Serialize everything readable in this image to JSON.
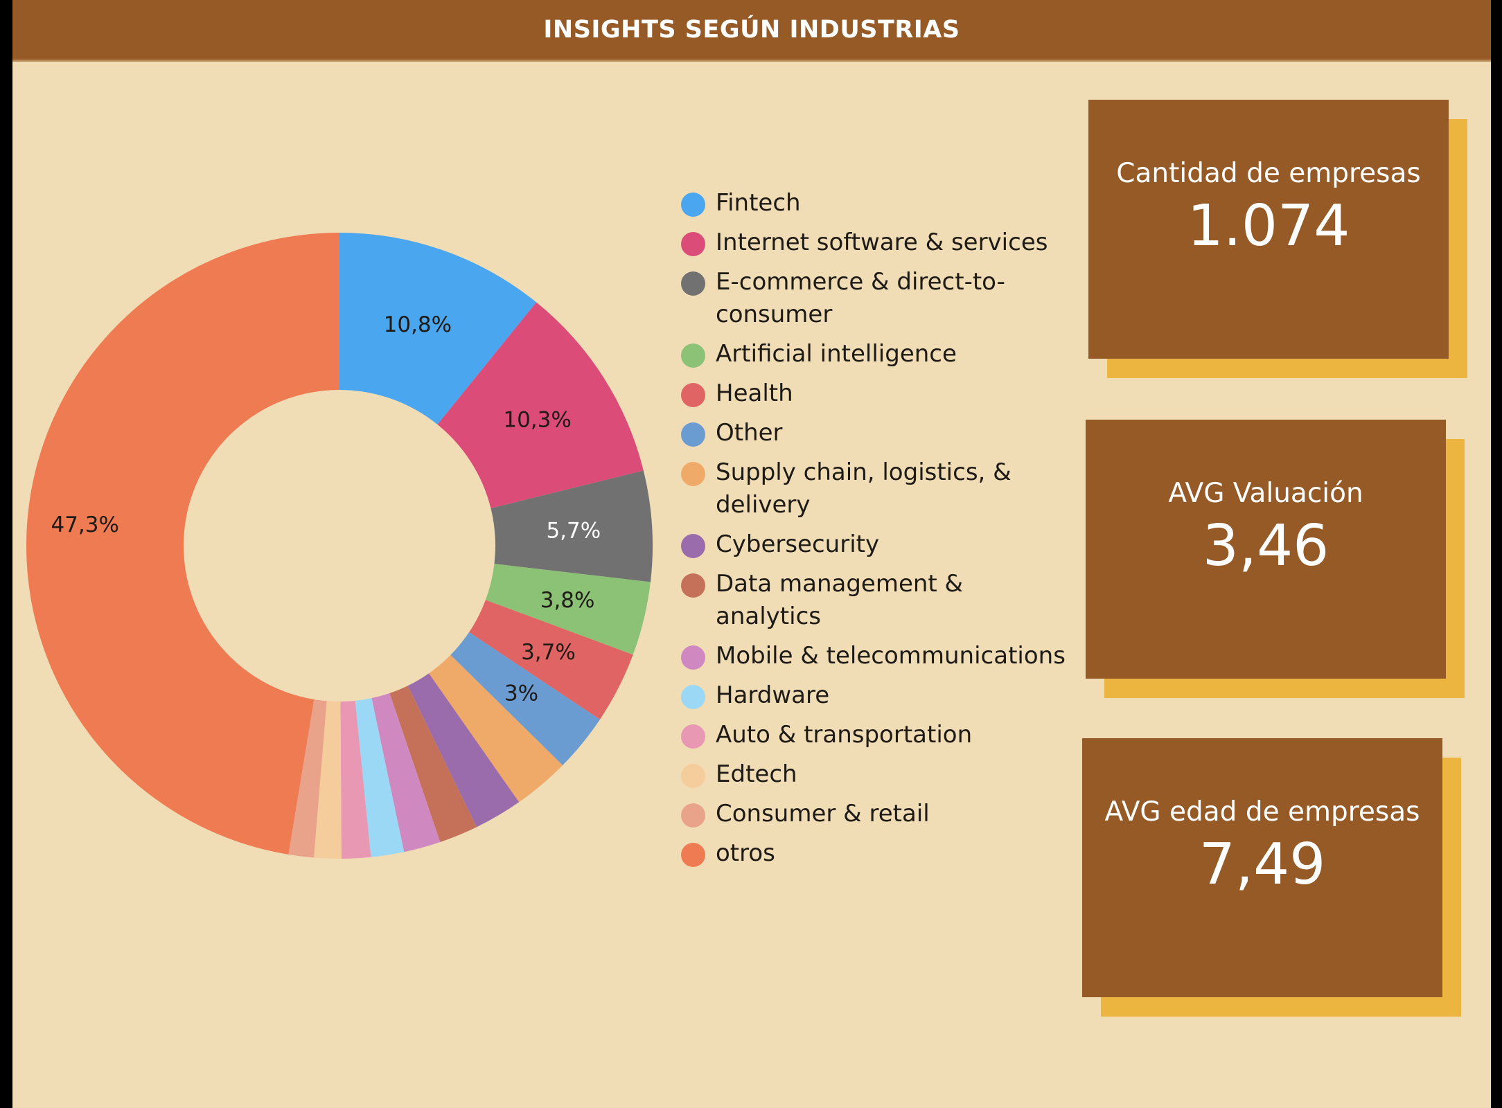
{
  "header": {
    "title": "INSIGHTS SEGÚN INDUSTRIAS"
  },
  "chart_data": {
    "type": "pie",
    "donut": true,
    "legend_position": "right",
    "series": [
      {
        "name": "Fintech",
        "value": 10.8,
        "label": "10,8%",
        "color": "#4aa6ee",
        "label_color": "#1e1a16"
      },
      {
        "name": "Internet software & services",
        "value": 10.3,
        "label": "10,3%",
        "color": "#db4c79",
        "label_color": "#1e1a16"
      },
      {
        "name": "E-commerce & direct-to-consumer",
        "value": 5.7,
        "label": "5,7%",
        "color": "#717171",
        "label_color": "#ffffff"
      },
      {
        "name": "Artificial intelligence",
        "value": 3.8,
        "label": "3,8%",
        "color": "#8cc276",
        "label_color": "#1e1a16"
      },
      {
        "name": "Health",
        "value": 3.7,
        "label": "3,7%",
        "color": "#e06464",
        "label_color": "#1e1a16"
      },
      {
        "name": "Other",
        "value": 3.0,
        "label": "3%",
        "color": "#6a9cd2",
        "label_color": "#1e1a16"
      },
      {
        "name": "Supply chain, logistics, & delivery",
        "value": 2.9,
        "label": "",
        "color": "#efaa6a",
        "label_color": "#1e1a16"
      },
      {
        "name": "Cybersecurity",
        "value": 2.5,
        "label": "",
        "color": "#9a6cab",
        "label_color": "#1e1a16"
      },
      {
        "name": "Data management & analytics",
        "value": 2.0,
        "label": "",
        "color": "#c57159",
        "label_color": "#1e1a16"
      },
      {
        "name": "Mobile & telecommunications",
        "value": 1.9,
        "label": "",
        "color": "#d088c0",
        "label_color": "#1e1a16"
      },
      {
        "name": "Hardware",
        "value": 1.7,
        "label": "",
        "color": "#9ad8f6",
        "label_color": "#1e1a16"
      },
      {
        "name": "Auto & transportation",
        "value": 1.5,
        "label": "",
        "color": "#e898b3",
        "label_color": "#1e1a16"
      },
      {
        "name": "Edtech",
        "value": 1.4,
        "label": "",
        "color": "#f5cc9c",
        "label_color": "#1e1a16"
      },
      {
        "name": "Consumer & retail",
        "value": 1.3,
        "label": "",
        "color": "#e9a38a",
        "label_color": "#1e1a16"
      },
      {
        "name": "otros",
        "value": 47.3,
        "label": "47,3%",
        "color": "#ef7b52",
        "label_color": "#1e1a16"
      }
    ],
    "legend_labels": [
      "Fintech",
      "Internet software & services",
      "E-commerce & direct-to- consumer",
      "Artificial intelligence",
      "Health",
      "Other",
      "Supply chain, logistics, & delivery",
      "Cybersecurity",
      "Data management & analytics",
      "Mobile & telecommunications",
      "Hardware",
      "Auto & transportation",
      "Edtech",
      "Consumer & retail",
      "otros"
    ]
  },
  "cards": [
    {
      "title": "Cantidad de empresas",
      "value": "1.074"
    },
    {
      "title": "AVG Valuación",
      "value": "3,46"
    },
    {
      "title": "AVG edad de empresas",
      "value": "7,49"
    }
  ],
  "colors": {
    "background": "#f0ddb6",
    "header": "#955a26",
    "card": "#955a26",
    "card_shadow": "#ecb53f"
  }
}
